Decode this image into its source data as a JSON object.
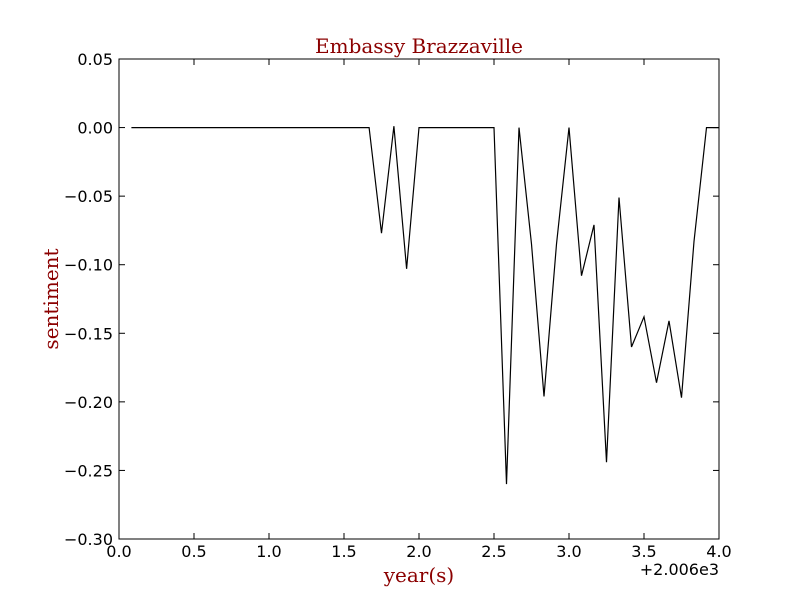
{
  "chart_data": {
    "type": "line",
    "title": "Embassy Brazzaville",
    "xlabel": "year(s)",
    "ylabel": "sentiment",
    "x_offset_text": "+2.006e3",
    "xlim": [
      0.0,
      4.0
    ],
    "ylim": [
      -0.3,
      0.05
    ],
    "x_ticks": [
      "0.0",
      "0.5",
      "1.0",
      "1.5",
      "2.0",
      "2.5",
      "3.0",
      "3.5",
      "4.0"
    ],
    "y_ticks": [
      "0.05",
      "0.00",
      "−0.05",
      "−0.10",
      "−0.15",
      "−0.20",
      "−0.25",
      "−0.30"
    ],
    "grid": false,
    "legend": "none",
    "series": [
      {
        "x": [
          0.083,
          0.167,
          0.25,
          0.333,
          0.417,
          0.5,
          0.583,
          0.667,
          0.75,
          0.833,
          0.917,
          1.0,
          1.083,
          1.167,
          1.25,
          1.333,
          1.417,
          1.5,
          1.583,
          1.667,
          1.75,
          1.833,
          1.917,
          2.0,
          2.083,
          2.167,
          2.25,
          2.333,
          2.417,
          2.5,
          2.583,
          2.667,
          2.75,
          2.833,
          2.917,
          3.0,
          3.083,
          3.167,
          3.25,
          3.333,
          3.417,
          3.5,
          3.583,
          3.667,
          3.75,
          3.833,
          3.917,
          4.0
        ],
        "y": [
          0,
          0,
          0,
          0,
          0,
          0,
          0,
          0,
          0,
          0,
          0,
          0,
          0,
          0,
          0,
          0,
          0,
          0,
          0,
          0,
          -0.077,
          0.001,
          -0.103,
          0,
          0,
          0,
          0,
          0,
          0,
          0,
          -0.26,
          0,
          -0.085,
          -0.196,
          -0.085,
          0,
          -0.108,
          -0.071,
          -0.244,
          -0.051,
          -0.16,
          -0.138,
          -0.186,
          -0.141,
          -0.197,
          -0.083,
          0,
          0
        ]
      }
    ]
  },
  "colors": {
    "line": "#000000",
    "label": "#8b0000",
    "axes": "#000000",
    "background": "#ffffff"
  }
}
